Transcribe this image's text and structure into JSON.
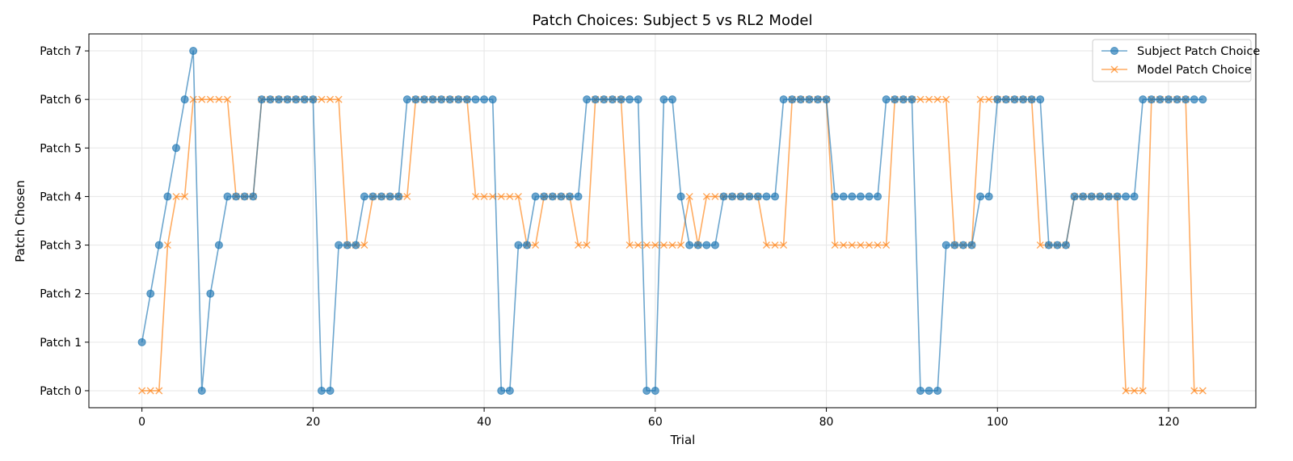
{
  "chart_data": {
    "type": "line",
    "title": "Patch Choices: Subject 5 vs RL2 Model",
    "xlabel": "Trial",
    "ylabel": "Patch Chosen",
    "xlim": [
      -6.2,
      130.2
    ],
    "ylim": [
      -0.35,
      7.35
    ],
    "xticks": [
      0,
      20,
      40,
      60,
      80,
      100,
      120
    ],
    "yticks": [
      0,
      1,
      2,
      3,
      4,
      5,
      6,
      7
    ],
    "ytick_labels": [
      "Patch 0",
      "Patch 1",
      "Patch 2",
      "Patch 3",
      "Patch 4",
      "Patch 5",
      "Patch 6",
      "Patch 7"
    ],
    "grid": true,
    "legend_position": "top-right",
    "series": [
      {
        "name": "Subject Patch Choice",
        "color": "#1f77b4",
        "marker": "circle",
        "values": [
          1,
          2,
          3,
          4,
          5,
          6,
          7,
          0,
          2,
          3,
          4,
          4,
          4,
          4,
          6,
          6,
          6,
          6,
          6,
          6,
          6,
          0,
          0,
          3,
          3,
          3,
          4,
          4,
          4,
          4,
          4,
          6,
          6,
          6,
          6,
          6,
          6,
          6,
          6,
          6,
          6,
          6,
          0,
          0,
          3,
          3,
          4,
          4,
          4,
          4,
          4,
          4,
          6,
          6,
          6,
          6,
          6,
          6,
          6,
          0,
          0,
          6,
          6,
          4,
          3,
          3,
          3,
          3,
          4,
          4,
          4,
          4,
          4,
          4,
          4,
          6,
          6,
          6,
          6,
          6,
          6,
          4,
          4,
          4,
          4,
          4,
          4,
          6,
          6,
          6,
          6,
          0,
          0,
          0,
          3,
          3,
          3,
          3,
          4,
          4,
          6,
          6,
          6,
          6,
          6,
          6,
          3,
          3,
          3,
          4,
          4,
          4,
          4,
          4,
          4,
          4,
          4,
          6,
          6,
          6,
          6,
          6,
          6,
          6,
          6
        ]
      },
      {
        "name": "Model Patch Choice",
        "color": "#ff7f0e",
        "marker": "x",
        "values": [
          0,
          0,
          0,
          3,
          4,
          4,
          6,
          6,
          6,
          6,
          6,
          4,
          4,
          4,
          6,
          6,
          6,
          6,
          6,
          6,
          6,
          6,
          6,
          6,
          3,
          3,
          3,
          4,
          4,
          4,
          4,
          4,
          6,
          6,
          6,
          6,
          6,
          6,
          6,
          4,
          4,
          4,
          4,
          4,
          4,
          3,
          3,
          4,
          4,
          4,
          4,
          3,
          3,
          6,
          6,
          6,
          6,
          3,
          3,
          3,
          3,
          3,
          3,
          3,
          4,
          3,
          4,
          4,
          4,
          4,
          4,
          4,
          4,
          3,
          3,
          3,
          6,
          6,
          6,
          6,
          6,
          3,
          3,
          3,
          3,
          3,
          3,
          3,
          6,
          6,
          6,
          6,
          6,
          6,
          6,
          3,
          3,
          3,
          6,
          6,
          6,
          6,
          6,
          6,
          6,
          3,
          3,
          3,
          3,
          4,
          4,
          4,
          4,
          4,
          4,
          0,
          0,
          0,
          6,
          6,
          6,
          6,
          6,
          0,
          0
        ]
      }
    ]
  }
}
